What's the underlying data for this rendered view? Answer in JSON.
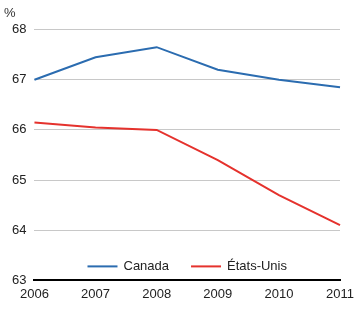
{
  "chart_data": {
    "type": "line",
    "y_label": "%",
    "categories": [
      "2006",
      "2007",
      "2008",
      "2009",
      "2010",
      "2011"
    ],
    "series": [
      {
        "name": "Canada",
        "color": "#2b6cb0",
        "values": [
          67.0,
          67.45,
          67.65,
          67.2,
          67.0,
          66.85
        ]
      },
      {
        "name": "États-Unis",
        "color": "#e5322d",
        "values": [
          66.15,
          66.05,
          66.0,
          65.4,
          64.7,
          64.1
        ]
      }
    ],
    "ylim": [
      63,
      68
    ],
    "yticks": [
      63,
      64,
      65,
      66,
      67,
      68
    ],
    "grid": true,
    "legend": "bottom"
  }
}
